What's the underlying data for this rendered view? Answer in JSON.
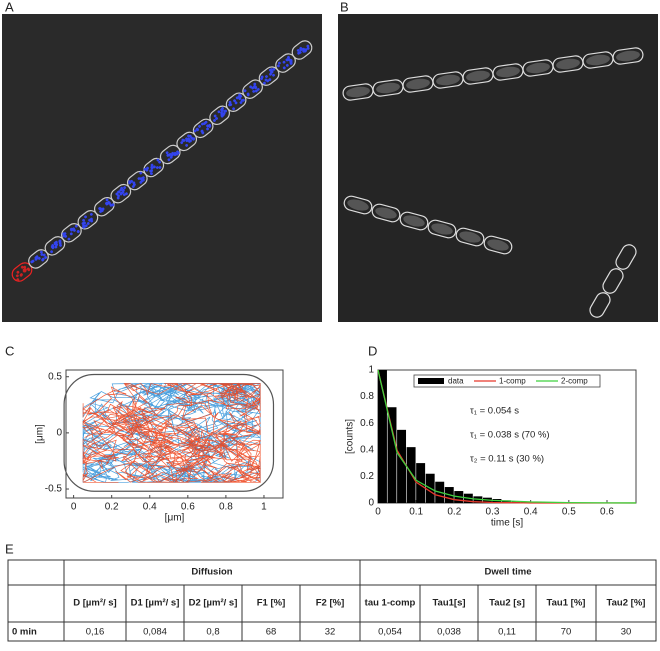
{
  "panel_labels": [
    "A",
    "B",
    "C",
    "D",
    "E"
  ],
  "chart_data": [
    {
      "type": "scatter",
      "xlabel": "[μm]",
      "ylabel": "[μm]",
      "xlim": [
        -0.04,
        1.1
      ],
      "ylim": [
        -0.58,
        0.56
      ],
      "xticks": [
        0,
        0.2,
        0.4,
        0.6,
        0.8,
        1
      ],
      "yticks": [
        -0.5,
        0,
        0.5
      ]
    },
    {
      "type": "histogram",
      "xlabel": "time [s]",
      "ylabel": "[counts]",
      "xlim": [
        0,
        0.676
      ],
      "ylim": [
        0,
        1
      ],
      "xticks": [
        0,
        0.1,
        0.2,
        0.3,
        0.4,
        0.5,
        0.6
      ],
      "yticks": [
        0,
        0.2,
        0.4,
        0.6,
        0.8,
        1
      ],
      "bins": [
        0,
        0.025,
        0.05,
        0.075,
        0.1,
        0.125,
        0.15,
        0.175,
        0.2,
        0.225,
        0.25,
        0.275,
        0.3,
        0.325,
        0.35,
        0.375,
        0.4,
        0.425,
        0.45,
        0.475,
        0.5,
        0.525,
        0.55,
        0.575,
        0.6,
        0.625,
        0.65,
        0.675
      ],
      "counts": [
        1,
        0.72,
        0.55,
        0.42,
        0.3,
        0.22,
        0.16,
        0.12,
        0.09,
        0.07,
        0.05,
        0.04,
        0.03,
        0.02,
        0.015,
        0.01,
        0.008,
        0.005,
        0.004,
        0.003,
        0.002,
        0.001,
        0,
        0,
        0,
        0,
        0
      ],
      "hist_name": "data",
      "hist_color": "#000000",
      "series": [
        {
          "name": "1-comp",
          "color": "#e8382b",
          "x": [
            0,
            0.05,
            0.1,
            0.15,
            0.2,
            0.25,
            0.3,
            0.4,
            0.5,
            0.6,
            0.676
          ],
          "values": [
            1,
            0.396,
            0.157,
            0.062,
            0.025,
            0.0098,
            0.0039,
            0.0006,
            0,
            0,
            0
          ]
        },
        {
          "name": "2-comp",
          "color": "#3ed13e",
          "x": [
            0,
            0.05,
            0.1,
            0.15,
            0.2,
            0.25,
            0.3,
            0.4,
            0.5,
            0.6,
            0.676
          ],
          "values": [
            1,
            0.378,
            0.171,
            0.09,
            0.052,
            0.031,
            0.02,
            0.008,
            0.003,
            0.001,
            0.0006
          ]
        }
      ],
      "annotations": [
        "τ₁ = 0.054 s",
        "τ₁ = 0.038 s  (70 %)",
        "τ₂ = 0.11 s   (30 %)"
      ]
    }
  ],
  "table": {
    "group_headers": [
      "Diffusion",
      "Dwell time"
    ],
    "columns": [
      "D [µm²/ s]",
      "D1 [µm²/ s]",
      "D2 [µm²/ s]",
      "F1 [%]",
      "F2 [%]",
      "tau 1-comp",
      "Tau1[s]",
      "Tau2 [s]",
      "Tau1 [%]",
      "Tau2 [%]"
    ],
    "rows": [
      [
        "0 min",
        "0,16",
        "0,084",
        "0,8",
        "68",
        "32",
        "0,054",
        "0,038",
        "0,11",
        "70",
        "30"
      ]
    ]
  }
}
